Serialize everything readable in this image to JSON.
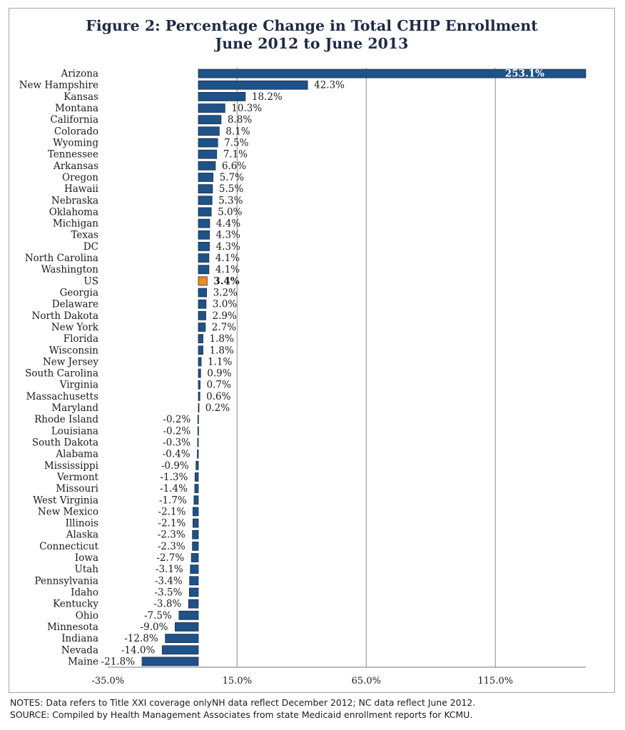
{
  "chart_data": {
    "type": "bar",
    "orientation": "horizontal",
    "title": "Figure 2: Percentage Change in Total CHIP Enrollment",
    "subtitle": "June 2012 to June 2013",
    "xlim": [
      -35,
      150
    ],
    "x_ticks": [
      -35,
      15,
      65,
      115
    ],
    "x_tick_labels": [
      "-35.0%",
      "15.0%",
      "65.0%",
      "115.0%"
    ],
    "grid": "vertical",
    "bar_color": "#1f5286",
    "highlight_color": "#f28a1e",
    "highlight_category": "US",
    "categories": [
      "Arizona",
      "New Hampshire",
      "Kansas",
      "Montana",
      "California",
      "Colorado",
      "Wyoming",
      "Tennessee",
      "Arkansas",
      "Oregon",
      "Hawaii",
      "Nebraska",
      "Oklahoma",
      "Michigan",
      "Texas",
      "DC",
      "North Carolina",
      "Washington",
      "US",
      "Georgia",
      "Delaware",
      "North Dakota",
      "New York",
      "Florida",
      "Wisconsin",
      "New Jersey",
      "South Carolina",
      "Virginia",
      "Massachusetts",
      "Maryland",
      "Rhode Island",
      "Louisiana",
      "South Dakota",
      "Alabama",
      "Mississippi",
      "Vermont",
      "Missouri",
      "West Virginia",
      "New Mexico",
      "Illinois",
      "Alaska",
      "Connecticut",
      "Iowa",
      "Utah",
      "Pennsylvania",
      "Idaho",
      "Kentucky",
      "Ohio",
      "Minnesota",
      "Indiana",
      "Nevada",
      "Maine"
    ],
    "values": [
      253.1,
      42.3,
      18.2,
      10.3,
      8.8,
      8.1,
      7.5,
      7.1,
      6.6,
      5.7,
      5.5,
      5.3,
      5.0,
      4.4,
      4.3,
      4.3,
      4.1,
      4.1,
      3.4,
      3.2,
      3.0,
      2.9,
      2.7,
      1.8,
      1.8,
      1.1,
      0.9,
      0.7,
      0.6,
      0.2,
      -0.2,
      -0.2,
      -0.3,
      -0.4,
      -0.9,
      -1.3,
      -1.4,
      -1.7,
      -2.1,
      -2.1,
      -2.3,
      -2.3,
      -2.7,
      -3.1,
      -3.4,
      -3.5,
      -3.8,
      -7.5,
      -9.0,
      -12.8,
      -14.0,
      -21.8
    ],
    "value_labels": [
      "253.1%",
      "42.3%",
      "18.2%",
      "10.3%",
      "8.8%",
      "8.1%",
      "7.5%",
      "7.1%",
      "6.6%",
      "5.7%",
      "5.5%",
      "5.3%",
      "5.0%",
      "4.4%",
      "4.3%",
      "4.3%",
      "4.1%",
      "4.1%",
      "3.4%",
      "3.2%",
      "3.0%",
      "2.9%",
      "2.7%",
      "1.8%",
      "1.8%",
      "1.1%",
      "0.9%",
      "0.7%",
      "0.6%",
      "0.2%",
      "-0.2%",
      "-0.2%",
      "-0.3%",
      "-0.4%",
      "-0.9%",
      "-1.3%",
      "-1.4%",
      "-1.7%",
      "-2.1%",
      "-2.1%",
      "-2.3%",
      "-2.3%",
      "-2.7%",
      "-3.1%",
      "-3.4%",
      "-3.5%",
      "-3.8%",
      "-7.5%",
      "-9.0%",
      "-12.8%",
      "-14.0%",
      "-21.8%"
    ]
  },
  "notes": {
    "line1": "NOTES: Data refers to Title XXI coverage onlyNH data reflect December 2012; NC data reflect June 2012.",
    "line2": "SOURCE: Compiled by Health Management Associates from state Medicaid enrollment reports for KCMU."
  }
}
